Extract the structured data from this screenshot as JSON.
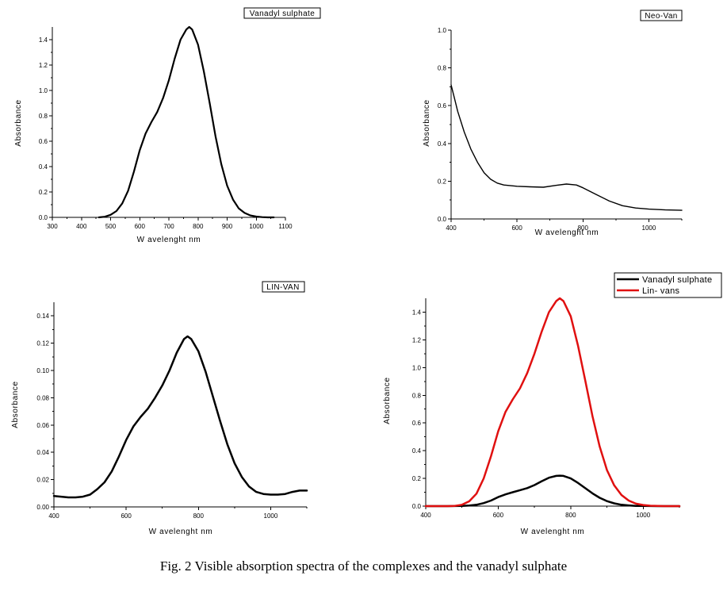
{
  "caption": "Fig. 2 Visible absorption spectra of the complexes and the vanadyl sulphate",
  "chart_data": [
    {
      "type": "line",
      "title": "Vanadyl sulphate",
      "xlabel": "W avelenght nm",
      "ylabel": "Absorbance",
      "xlim": [
        300,
        1100
      ],
      "ylim": [
        0,
        1.5
      ],
      "xticks": [
        300,
        400,
        500,
        600,
        700,
        800,
        900,
        1000,
        1100
      ],
      "yticks": [
        0.0,
        0.2,
        0.4,
        0.6,
        0.8,
        1.0,
        1.2,
        1.4
      ],
      "xtick_labels": [
        "300",
        "400",
        "500",
        "600",
        "700",
        "800",
        "900",
        "1000",
        "1100"
      ],
      "ytick_labels": [
        "0.0",
        "0.2",
        "0.4",
        "0.6",
        "0.8",
        "1.0",
        "1.2",
        "1.4"
      ],
      "series": [
        {
          "color": "#000000",
          "x": [
            460,
            480,
            500,
            520,
            540,
            560,
            580,
            600,
            620,
            640,
            660,
            680,
            700,
            720,
            740,
            760,
            770,
            780,
            800,
            820,
            840,
            860,
            880,
            900,
            920,
            940,
            960,
            980,
            1000,
            1020,
            1040,
            1060
          ],
          "y": [
            0.0,
            0.005,
            0.02,
            0.05,
            0.11,
            0.21,
            0.36,
            0.53,
            0.66,
            0.75,
            0.83,
            0.94,
            1.08,
            1.25,
            1.4,
            1.48,
            1.5,
            1.48,
            1.36,
            1.15,
            0.9,
            0.64,
            0.42,
            0.25,
            0.14,
            0.07,
            0.035,
            0.015,
            0.006,
            0.002,
            0.0,
            0.0
          ]
        }
      ]
    },
    {
      "type": "line",
      "title": "Neo-Van",
      "xlabel": "W avelenght nm",
      "ylabel": "Absorbance",
      "xlim": [
        400,
        1100
      ],
      "ylim": [
        0,
        1.0
      ],
      "xticks": [
        400,
        600,
        800,
        1000
      ],
      "yticks": [
        0.0,
        0.2,
        0.4,
        0.6,
        0.8,
        1.0
      ],
      "xtick_labels": [
        "400",
        "600",
        "800",
        "1000"
      ],
      "ytick_labels": [
        "0.0",
        "0.2",
        "0.4",
        "0.6",
        "0.8",
        "1.0"
      ],
      "series": [
        {
          "color": "#000000",
          "x": [
            400,
            410,
            420,
            440,
            460,
            480,
            500,
            520,
            540,
            560,
            600,
            640,
            680,
            720,
            750,
            780,
            800,
            840,
            880,
            920,
            960,
            1000,
            1050,
            1100
          ],
          "y": [
            0.71,
            0.64,
            0.57,
            0.46,
            0.37,
            0.3,
            0.245,
            0.21,
            0.19,
            0.18,
            0.173,
            0.17,
            0.168,
            0.178,
            0.185,
            0.18,
            0.165,
            0.13,
            0.095,
            0.07,
            0.058,
            0.052,
            0.048,
            0.046
          ]
        }
      ]
    },
    {
      "type": "line",
      "title": "LIN-VAN",
      "xlabel": "W avelenght nm",
      "ylabel": "Absorbance",
      "xlim": [
        400,
        1100
      ],
      "ylim": [
        0,
        0.15
      ],
      "xticks": [
        400,
        600,
        800,
        1000
      ],
      "yticks": [
        0.0,
        0.02,
        0.04,
        0.06,
        0.08,
        0.1,
        0.12,
        0.14
      ],
      "xtick_labels": [
        "400",
        "600",
        "800",
        "1000"
      ],
      "ytick_labels": [
        "0.00",
        "0.02",
        "0.04",
        "0.06",
        "0.08",
        "0.10",
        "0.12",
        "0.14"
      ],
      "series": [
        {
          "color": "#000000",
          "x": [
            400,
            420,
            440,
            460,
            480,
            500,
            520,
            540,
            560,
            580,
            600,
            620,
            640,
            660,
            680,
            700,
            720,
            740,
            760,
            770,
            780,
            800,
            820,
            840,
            860,
            880,
            900,
            920,
            940,
            960,
            980,
            1000,
            1020,
            1040,
            1060,
            1080,
            1100
          ],
          "y": [
            0.008,
            0.0075,
            0.007,
            0.007,
            0.0075,
            0.009,
            0.013,
            0.018,
            0.026,
            0.037,
            0.049,
            0.059,
            0.066,
            0.072,
            0.08,
            0.089,
            0.1,
            0.113,
            0.123,
            0.125,
            0.123,
            0.114,
            0.099,
            0.081,
            0.063,
            0.046,
            0.032,
            0.022,
            0.015,
            0.011,
            0.0095,
            0.009,
            0.009,
            0.0095,
            0.011,
            0.012,
            0.012
          ]
        }
      ]
    },
    {
      "type": "line",
      "title": "",
      "xlabel": "W avelenght nm",
      "ylabel": "Absorbance",
      "xlim": [
        400,
        1100
      ],
      "ylim": [
        0,
        1.5
      ],
      "xticks": [
        400,
        600,
        800,
        1000
      ],
      "yticks": [
        0.0,
        0.2,
        0.4,
        0.6,
        0.8,
        1.0,
        1.2,
        1.4
      ],
      "xtick_labels": [
        "400",
        "600",
        "800",
        "1000"
      ],
      "ytick_labels": [
        "0.0",
        "0.2",
        "0.4",
        "0.6",
        "0.8",
        "1.0",
        "1.2",
        "1.4"
      ],
      "legend": "top-right",
      "series": [
        {
          "name": "Vanadyl sulphate",
          "color": "#000000",
          "x": [
            400,
            460,
            500,
            520,
            540,
            560,
            580,
            600,
            620,
            640,
            660,
            680,
            700,
            720,
            740,
            760,
            770,
            780,
            800,
            820,
            840,
            860,
            880,
            900,
            920,
            940,
            960,
            980,
            1000,
            1040,
            1100
          ],
          "y": [
            0.0,
            0.0,
            0.001,
            0.004,
            0.01,
            0.022,
            0.04,
            0.065,
            0.085,
            0.1,
            0.115,
            0.13,
            0.152,
            0.18,
            0.205,
            0.218,
            0.22,
            0.218,
            0.2,
            0.168,
            0.13,
            0.092,
            0.06,
            0.036,
            0.02,
            0.01,
            0.005,
            0.002,
            0.001,
            0.0,
            0.0
          ]
        },
        {
          "name": "Lin- vans",
          "color": "#e01010",
          "x": [
            400,
            460,
            480,
            500,
            520,
            540,
            560,
            580,
            600,
            620,
            640,
            660,
            680,
            700,
            720,
            740,
            760,
            770,
            780,
            800,
            820,
            840,
            860,
            880,
            900,
            920,
            940,
            960,
            980,
            1000,
            1020,
            1040,
            1060,
            1100
          ],
          "y": [
            0.0,
            0.0,
            0.002,
            0.01,
            0.035,
            0.09,
            0.2,
            0.36,
            0.54,
            0.68,
            0.77,
            0.85,
            0.96,
            1.1,
            1.26,
            1.4,
            1.48,
            1.5,
            1.48,
            1.37,
            1.16,
            0.91,
            0.65,
            0.43,
            0.26,
            0.15,
            0.08,
            0.04,
            0.018,
            0.008,
            0.003,
            0.001,
            0.0,
            0.0
          ]
        }
      ]
    }
  ]
}
